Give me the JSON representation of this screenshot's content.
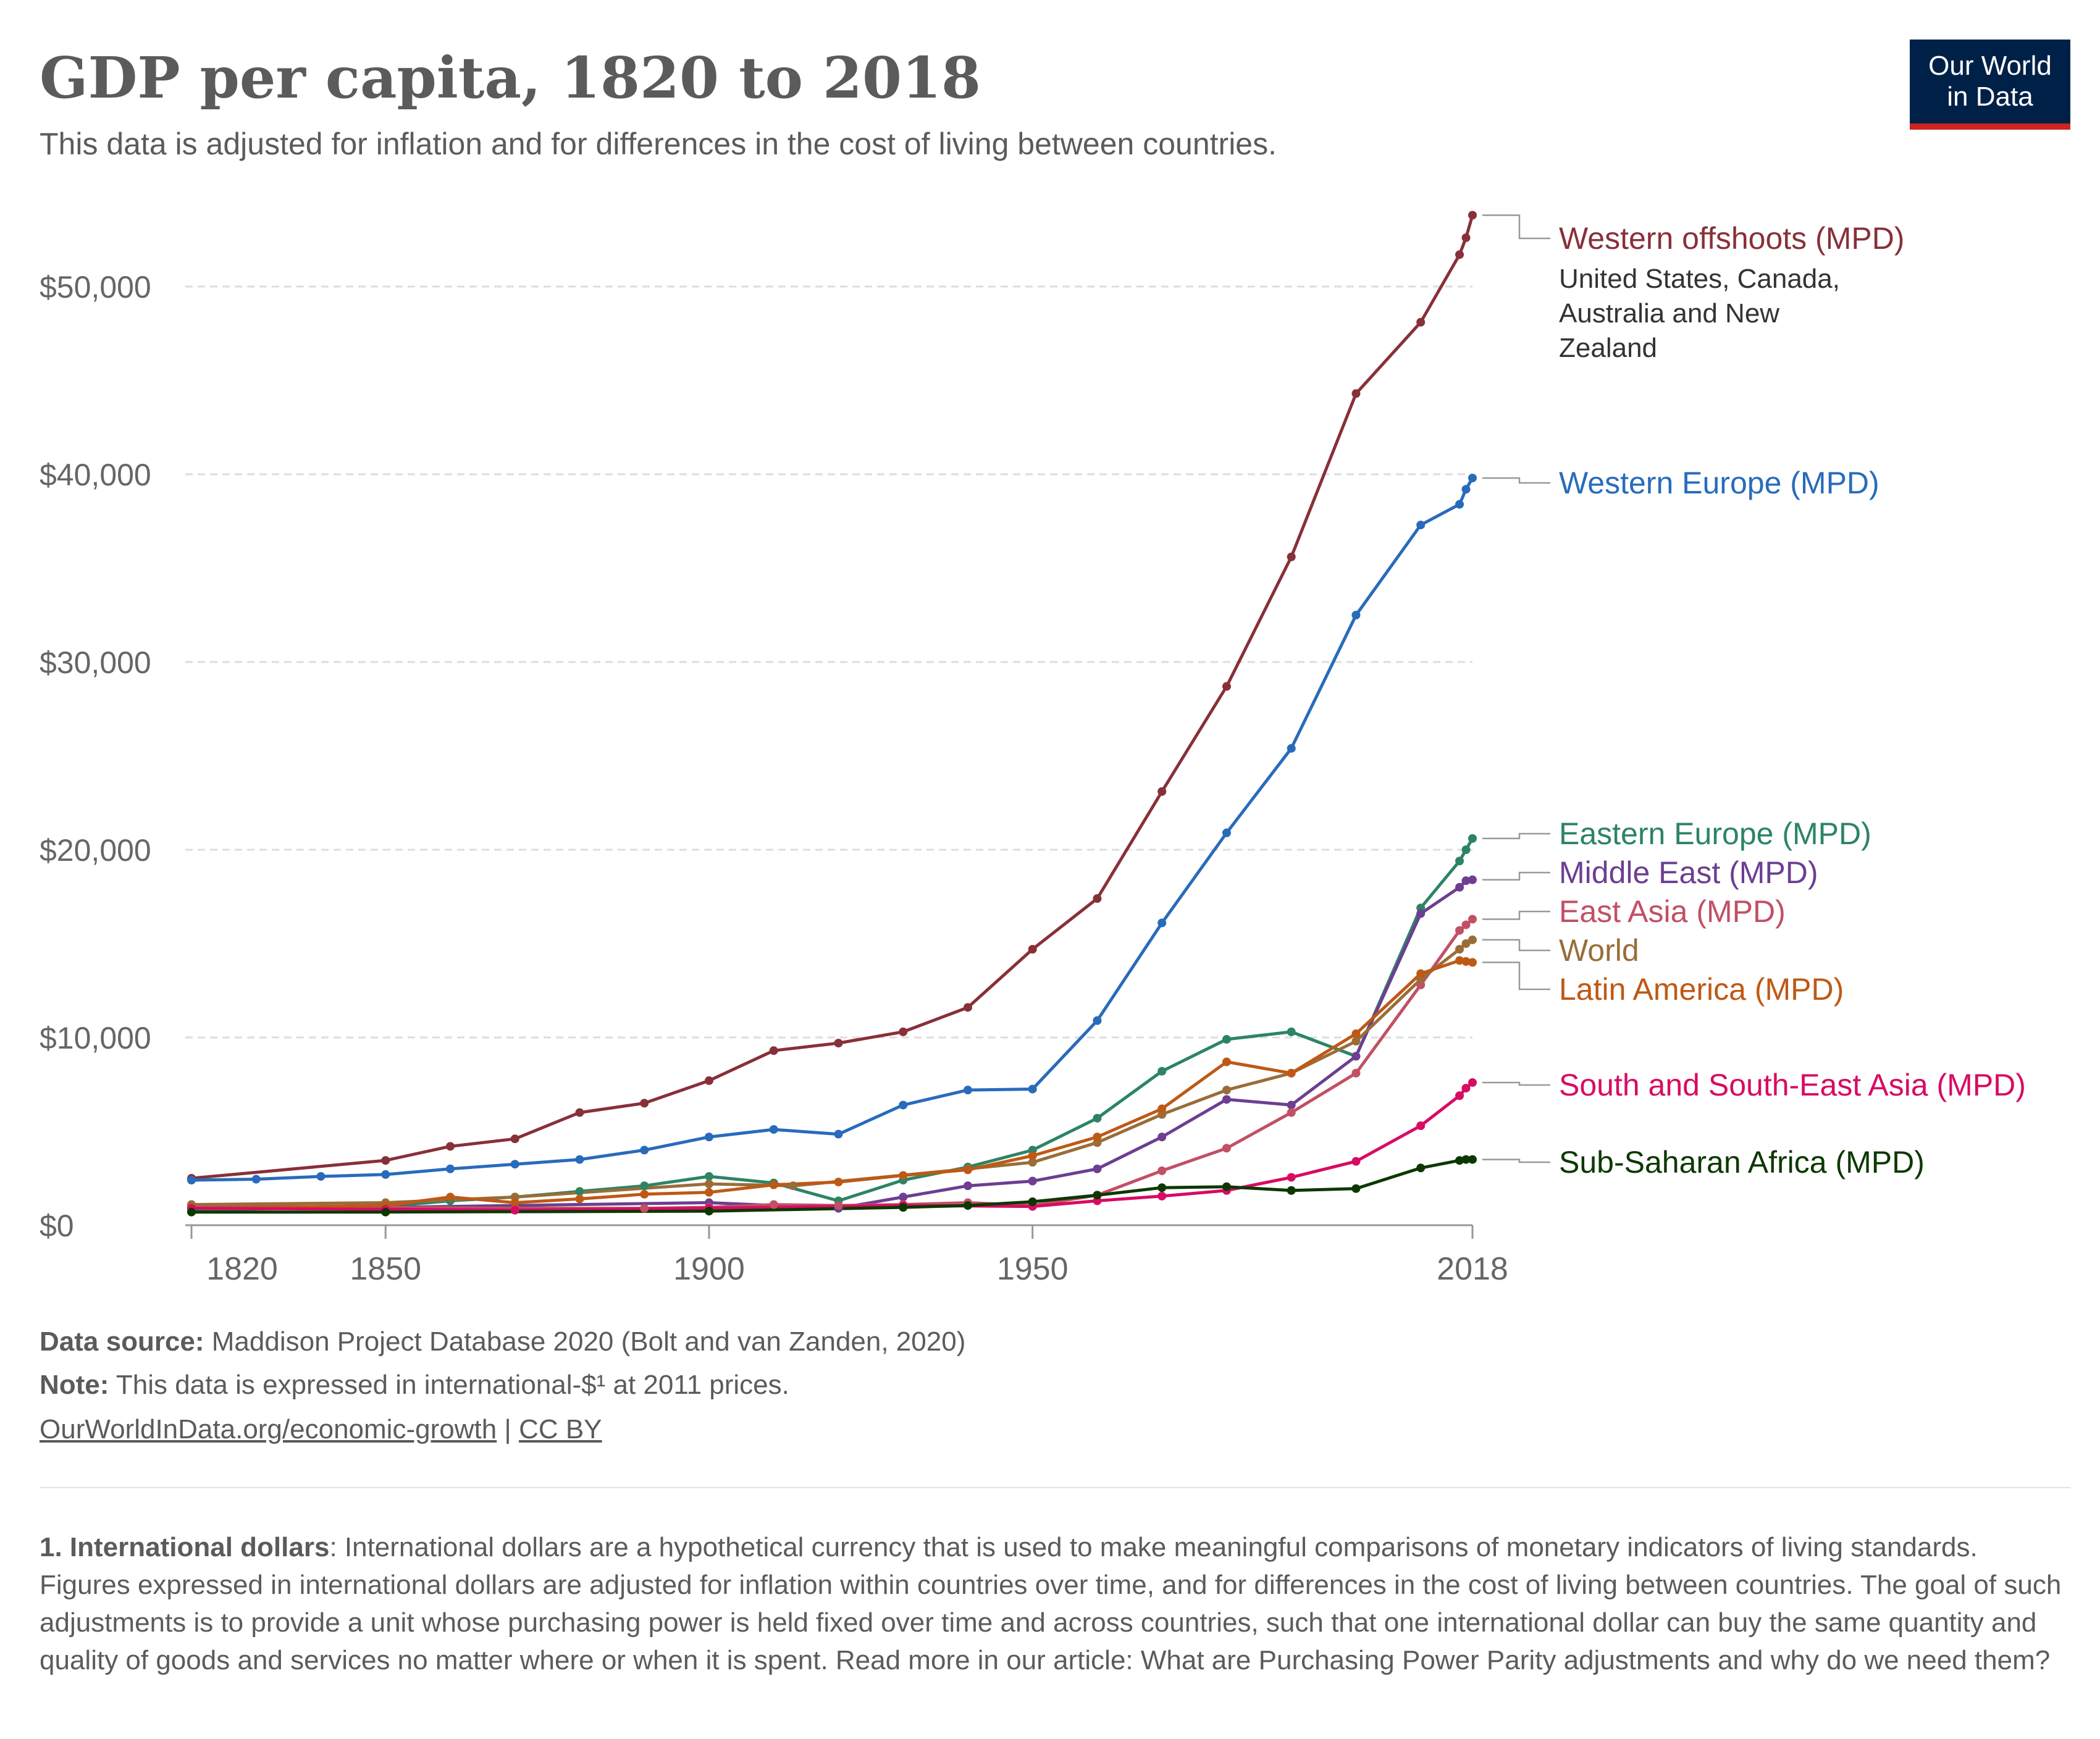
{
  "header": {
    "title": "GDP per capita, 1820 to 2018",
    "subtitle": "This data is adjusted for inflation and for differences in the cost of living between countries.",
    "logo_line1": "Our World",
    "logo_line2": "in Data"
  },
  "footer": {
    "source_label": "Data source:",
    "source_text": " Maddison Project Database 2020 (Bolt and van Zanden, 2020)",
    "note_label": "Note:",
    "note_text": " This data is expressed in international-$¹ at 2011 prices.",
    "link_text": "OurWorldInData.org/economic-growth",
    "separator": " | ",
    "license_text": "CC BY"
  },
  "footnote": {
    "label": "1. International dollars",
    "text": ": International dollars are a hypothetical currency that is used to make meaningful comparisons of monetary indicators of living standards. Figures expressed in international dollars are adjusted for inflation within countries over time, and for differences in the cost of living between countries. The goal of such adjustments is to provide a unit whose purchasing power is held fixed over time and across countries, such that one international dollar can buy the same quantity and quality of goods and services no matter where or when it is spent. Read more in our article: What are Purchasing Power Parity adjustments and why do we need them?"
  },
  "chart_data": {
    "type": "line",
    "title": "GDP per capita, 1820 to 2018",
    "xlabel": "",
    "ylabel": "",
    "xlim": [
      1820,
      2018
    ],
    "ylim": [
      0,
      55000
    ],
    "x_ticks": [
      1820,
      1850,
      1900,
      1950,
      2018
    ],
    "y_ticks": [
      {
        "value": 0,
        "label": "$0"
      },
      {
        "value": 10000,
        "label": "$10,000"
      },
      {
        "value": 20000,
        "label": "$20,000"
      },
      {
        "value": 30000,
        "label": "$30,000"
      },
      {
        "value": 40000,
        "label": "$40,000"
      },
      {
        "value": 50000,
        "label": "$50,000"
      }
    ],
    "grid": true,
    "legend": "right-end labels",
    "series": [
      {
        "name": "Western offshoots (MPD)",
        "sublabel": "United States, Canada, Australia and New Zealand",
        "color": "#883039",
        "points": [
          [
            1820,
            2500
          ],
          [
            1850,
            3450
          ],
          [
            1860,
            4200
          ],
          [
            1870,
            4600
          ],
          [
            1880,
            6000
          ],
          [
            1890,
            6500
          ],
          [
            1900,
            7700
          ],
          [
            1910,
            9300
          ],
          [
            1920,
            9700
          ],
          [
            1930,
            10300
          ],
          [
            1940,
            11600
          ],
          [
            1950,
            14700
          ],
          [
            1960,
            17400
          ],
          [
            1970,
            23100
          ],
          [
            1980,
            28700
          ],
          [
            1990,
            35600
          ],
          [
            2000,
            44300
          ],
          [
            2010,
            48100
          ],
          [
            2016,
            51700
          ],
          [
            2017,
            52600
          ],
          [
            2018,
            53800
          ]
        ]
      },
      {
        "name": "Western Europe (MPD)",
        "color": "#286bbb",
        "points": [
          [
            1820,
            2400
          ],
          [
            1830,
            2450
          ],
          [
            1840,
            2600
          ],
          [
            1850,
            2700
          ],
          [
            1860,
            3000
          ],
          [
            1870,
            3250
          ],
          [
            1880,
            3500
          ],
          [
            1890,
            4000
          ],
          [
            1900,
            4700
          ],
          [
            1910,
            5100
          ],
          [
            1920,
            4850
          ],
          [
            1930,
            6400
          ],
          [
            1940,
            7200
          ],
          [
            1950,
            7250
          ],
          [
            1960,
            10900
          ],
          [
            1970,
            16100
          ],
          [
            1980,
            20900
          ],
          [
            1990,
            25400
          ],
          [
            2000,
            32500
          ],
          [
            2010,
            37300
          ],
          [
            2016,
            38400
          ],
          [
            2017,
            39200
          ],
          [
            2018,
            39800
          ]
        ]
      },
      {
        "name": "Eastern Europe (MPD)",
        "color": "#2c8465",
        "points": [
          [
            1820,
            800
          ],
          [
            1850,
            1000
          ],
          [
            1860,
            1300
          ],
          [
            1870,
            1500
          ],
          [
            1880,
            1800
          ],
          [
            1890,
            2100
          ],
          [
            1900,
            2600
          ],
          [
            1910,
            2250
          ],
          [
            1920,
            1300
          ],
          [
            1930,
            2400
          ],
          [
            1940,
            3100
          ],
          [
            1950,
            4000
          ],
          [
            1960,
            5700
          ],
          [
            1970,
            8200
          ],
          [
            1980,
            9900
          ],
          [
            1990,
            10300
          ],
          [
            2000,
            9000
          ],
          [
            2010,
            16900
          ],
          [
            2016,
            19400
          ],
          [
            2017,
            20000
          ],
          [
            2018,
            20600
          ]
        ]
      },
      {
        "name": "Middle East (MPD)",
        "color": "#6d3e91",
        "points": [
          [
            1820,
            950
          ],
          [
            1850,
            950
          ],
          [
            1870,
            1050
          ],
          [
            1900,
            1200
          ],
          [
            1920,
            900
          ],
          [
            1930,
            1500
          ],
          [
            1940,
            2100
          ],
          [
            1950,
            2350
          ],
          [
            1960,
            3000
          ],
          [
            1970,
            4700
          ],
          [
            1980,
            6700
          ],
          [
            1990,
            6400
          ],
          [
            2000,
            9000
          ],
          [
            2010,
            16600
          ],
          [
            2016,
            18000
          ],
          [
            2017,
            18350
          ],
          [
            2018,
            18400
          ]
        ]
      },
      {
        "name": "East Asia (MPD)",
        "color": "#c15065",
        "points": [
          [
            1820,
            1050
          ],
          [
            1850,
            950
          ],
          [
            1870,
            900
          ],
          [
            1890,
            900
          ],
          [
            1900,
            950
          ],
          [
            1910,
            1100
          ],
          [
            1920,
            1050
          ],
          [
            1930,
            1100
          ],
          [
            1940,
            1200
          ],
          [
            1950,
            1050
          ],
          [
            1960,
            1600
          ],
          [
            1970,
            2900
          ],
          [
            1980,
            4100
          ],
          [
            1990,
            6000
          ],
          [
            2000,
            8100
          ],
          [
            2010,
            12800
          ],
          [
            2016,
            15700
          ],
          [
            2017,
            16000
          ],
          [
            2018,
            16300
          ]
        ]
      },
      {
        "name": "World",
        "color": "#996d39",
        "points": [
          [
            1820,
            1100
          ],
          [
            1850,
            1200
          ],
          [
            1870,
            1500
          ],
          [
            1900,
            2200
          ],
          [
            1913,
            2100
          ],
          [
            1940,
            3000
          ],
          [
            1950,
            3350
          ],
          [
            1960,
            4400
          ],
          [
            1970,
            5900
          ],
          [
            1980,
            7200
          ],
          [
            1990,
            8100
          ],
          [
            2000,
            9800
          ],
          [
            2010,
            13100
          ],
          [
            2016,
            14700
          ],
          [
            2017,
            15000
          ],
          [
            2018,
            15200
          ]
        ]
      },
      {
        "name": "Latin America (MPD)",
        "color": "#be5915",
        "points": [
          [
            1820,
            900
          ],
          [
            1850,
            1050
          ],
          [
            1860,
            1500
          ],
          [
            1870,
            1200
          ],
          [
            1880,
            1400
          ],
          [
            1890,
            1650
          ],
          [
            1900,
            1750
          ],
          [
            1910,
            2150
          ],
          [
            1920,
            2300
          ],
          [
            1930,
            2650
          ],
          [
            1940,
            2950
          ],
          [
            1950,
            3700
          ],
          [
            1960,
            4700
          ],
          [
            1970,
            6200
          ],
          [
            1980,
            8700
          ],
          [
            1990,
            8100
          ],
          [
            2000,
            10200
          ],
          [
            2010,
            13400
          ],
          [
            2016,
            14100
          ],
          [
            2017,
            14050
          ],
          [
            2018,
            14000
          ]
        ]
      },
      {
        "name": "South and South-East Asia (MPD)",
        "color": "#d80b63",
        "points": [
          [
            1820,
            900
          ],
          [
            1850,
            850
          ],
          [
            1870,
            800
          ],
          [
            1900,
            900
          ],
          [
            1930,
            1050
          ],
          [
            1950,
            1000
          ],
          [
            1960,
            1300
          ],
          [
            1970,
            1550
          ],
          [
            1980,
            1850
          ],
          [
            1990,
            2550
          ],
          [
            2000,
            3400
          ],
          [
            2010,
            5300
          ],
          [
            2016,
            6900
          ],
          [
            2017,
            7300
          ],
          [
            2018,
            7600
          ]
        ]
      },
      {
        "name": "Sub-Saharan Africa (MPD)",
        "color": "#0c3800",
        "points": [
          [
            1820,
            700
          ],
          [
            1850,
            700
          ],
          [
            1900,
            750
          ],
          [
            1930,
            950
          ],
          [
            1940,
            1050
          ],
          [
            1950,
            1250
          ],
          [
            1960,
            1600
          ],
          [
            1970,
            2000
          ],
          [
            1980,
            2050
          ],
          [
            1990,
            1850
          ],
          [
            2000,
            1950
          ],
          [
            2010,
            3050
          ],
          [
            2016,
            3450
          ],
          [
            2017,
            3500
          ],
          [
            2018,
            3500
          ]
        ]
      }
    ]
  }
}
